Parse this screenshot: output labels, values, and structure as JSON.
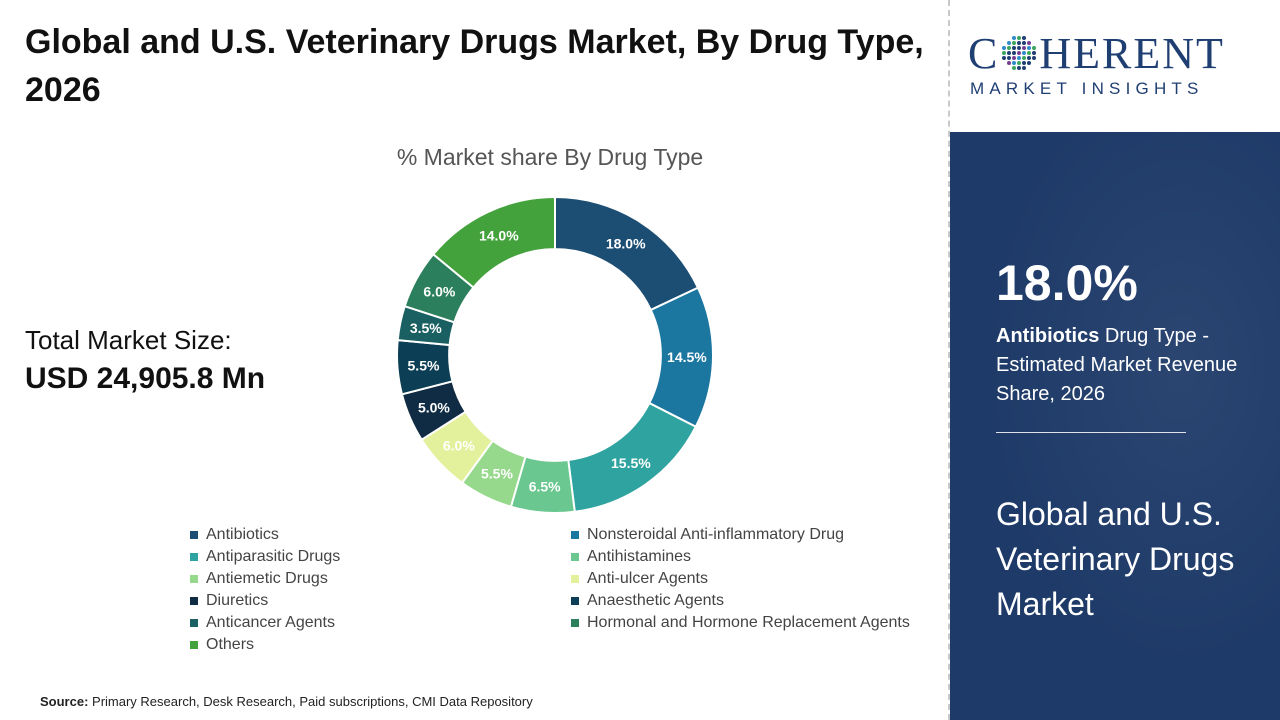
{
  "title": "Global and U.S. Veterinary Drugs Market, By Drug Type, 2026",
  "total_market": {
    "label": "Total Market Size:",
    "value": "USD 24,905.8 Mn"
  },
  "source": {
    "label": "Source:",
    "text": "Primary Research, Desk Research, Paid subscriptions, CMI Data Repository"
  },
  "logo": {
    "word_start": "C",
    "word_end": "HERENT",
    "sub": "MARKET INSIGHTS"
  },
  "highlight": {
    "value": "18.0%",
    "bold": "Antibiotics",
    "rest": " Drug Type - Estimated Market Revenue Share, 2026",
    "market_name": "Global and U.S. Veterinary Drugs Market"
  },
  "chart_data": {
    "type": "pie",
    "title": "% Market share By Drug Type",
    "categories": [
      "Antibiotics",
      "Nonsteroidal Anti-inflammatory Drug",
      "Antiparasitic Drugs",
      "Antihistamines",
      "Antiemetic Drugs",
      "Anti-ulcer Agents",
      "Diuretics",
      "Anaesthetic Agents",
      "Anticancer Agents",
      "Hormonal and Hormone Replacement Agents",
      "Others"
    ],
    "values": [
      18.0,
      14.5,
      15.5,
      6.5,
      5.5,
      6.0,
      5.0,
      5.5,
      3.5,
      6.0,
      14.0
    ],
    "labels": [
      "18.0%",
      "14.5%",
      "15.5%",
      "6.5%",
      "5.5%",
      "6.0%",
      "5.0%",
      "5.5%",
      "3.5%",
      "6.0%",
      "14.0%"
    ],
    "colors": [
      "#1c4e74",
      "#1b76a0",
      "#2fa39f",
      "#69c78f",
      "#97d98c",
      "#e3f09c",
      "#0f2c44",
      "#0c3f55",
      "#1a5f61",
      "#2c7f5d",
      "#44a23c"
    ],
    "label_colors": [
      "#ffffff",
      "#ffffff",
      "#ffffff",
      "#ffffff",
      "#ffffff",
      "#ffffff",
      "#ffffff",
      "#ffffff",
      "#ffffff",
      "#ffffff",
      "#ffffff"
    ],
    "hole": 0.67,
    "legend": "bottom",
    "legend_columns": 2
  }
}
